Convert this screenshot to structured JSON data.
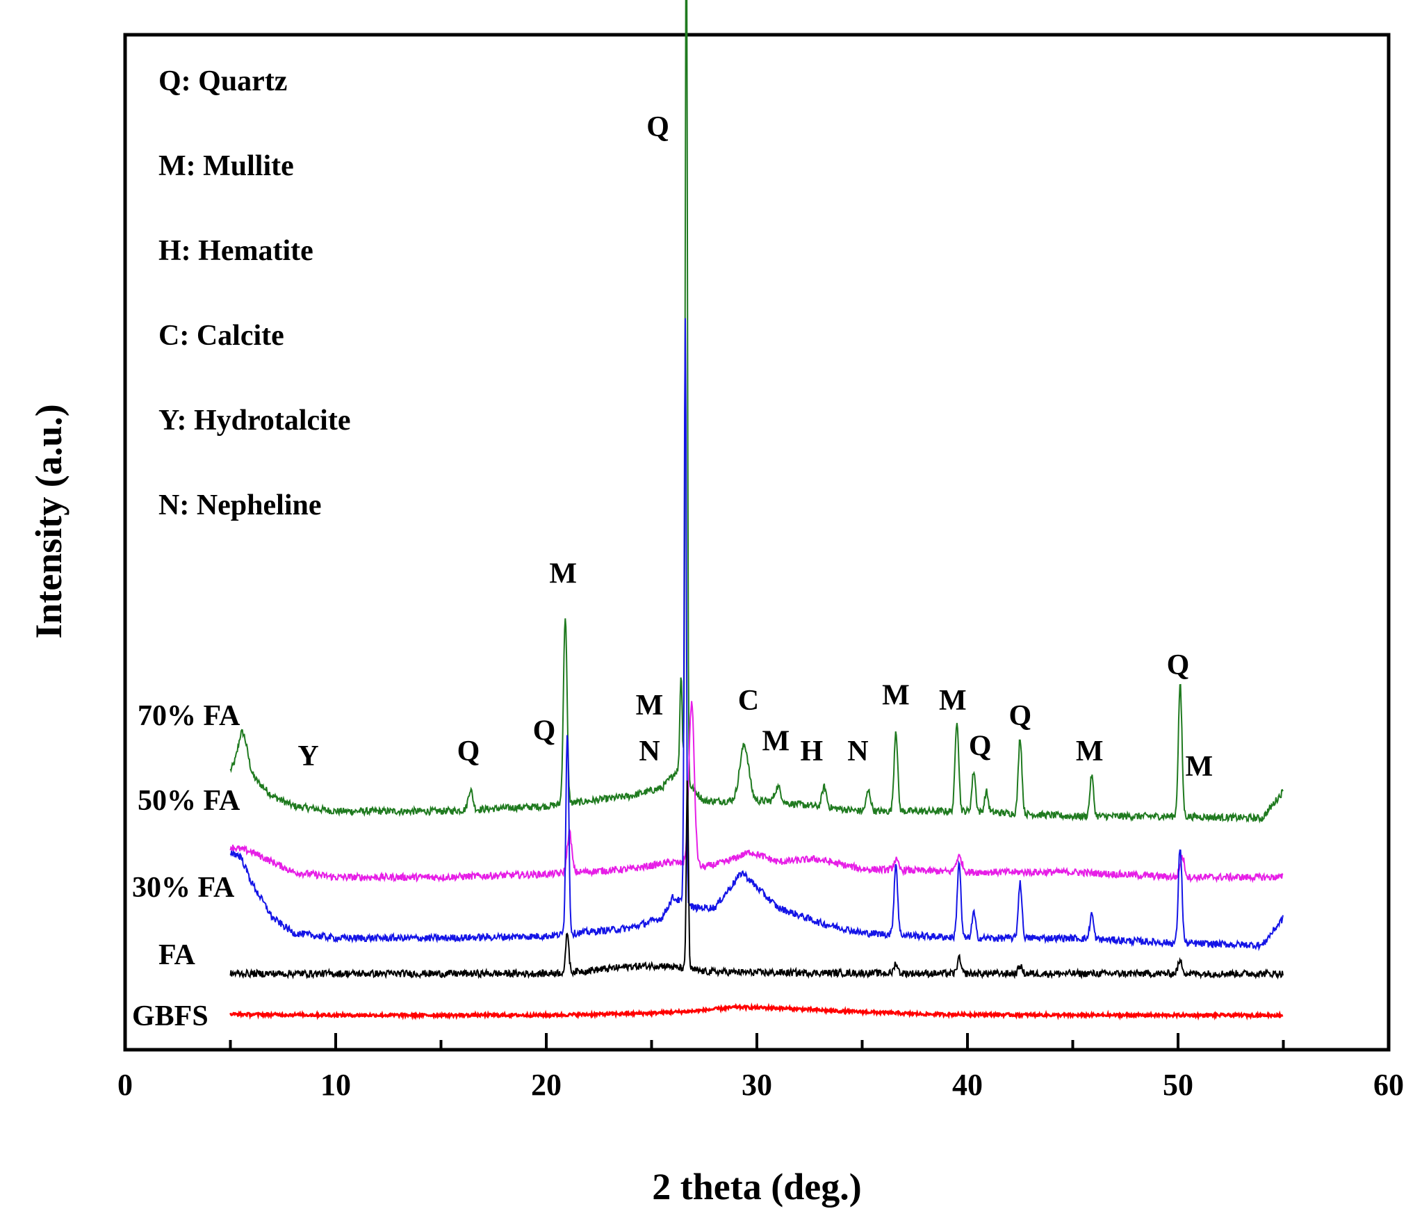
{
  "chart_data": {
    "type": "line",
    "title": "",
    "xlabel": "2 theta (deg.)",
    "ylabel": "Intensity (a.u.)",
    "xlim": [
      0,
      60
    ],
    "ylim": [
      0,
      100
    ],
    "x_ticks": [
      0,
      10,
      20,
      30,
      40,
      50,
      60
    ],
    "x_tick_labels": [
      "0",
      "10",
      "20",
      "30",
      "40",
      "50",
      "60"
    ],
    "y_ticks_visible": false,
    "grid": false,
    "legend_position": "top-left",
    "legend": [
      "Q: Quartz",
      "M: Mullite",
      "H: Hematite",
      "C: Calcite",
      "Y: Hydrotalcite",
      "N: Nepheline"
    ],
    "series": [
      {
        "name": "70% FA",
        "color": "#1f7a1f",
        "baseline": [
          [
            5,
            27.5
          ],
          [
            5.5,
            28.5
          ],
          [
            6,
            27.0
          ],
          [
            7,
            25.0
          ],
          [
            8,
            24.0
          ],
          [
            10,
            23.5
          ],
          [
            15,
            23.5
          ],
          [
            20,
            24.0
          ],
          [
            22,
            24.5
          ],
          [
            24,
            25.0
          ],
          [
            25.5,
            25.8
          ],
          [
            26.2,
            27.5
          ],
          [
            27.5,
            24.5
          ],
          [
            28.5,
            24.5
          ],
          [
            30.5,
            24.5
          ],
          [
            35,
            23.5
          ],
          [
            40,
            23.5
          ],
          [
            45,
            23.0
          ],
          [
            50,
            23.0
          ],
          [
            54,
            22.8
          ],
          [
            55,
            25.5
          ]
        ],
        "peaks": [
          [
            5.6,
            3.0,
            0.3
          ],
          [
            16.4,
            2.0,
            0.15
          ],
          [
            20.9,
            18.5,
            0.12
          ],
          [
            26.4,
            10.0,
            0.08
          ],
          [
            26.65,
            90.0,
            0.07
          ],
          [
            29.4,
            5.5,
            0.3
          ],
          [
            31.0,
            1.5,
            0.2
          ],
          [
            33.2,
            2.0,
            0.15
          ],
          [
            35.3,
            2.0,
            0.15
          ],
          [
            36.6,
            8.0,
            0.12
          ],
          [
            39.5,
            9.0,
            0.12
          ],
          [
            40.3,
            4.0,
            0.12
          ],
          [
            40.9,
            2.0,
            0.12
          ],
          [
            42.5,
            7.5,
            0.12
          ],
          [
            45.9,
            4.0,
            0.12
          ],
          [
            50.1,
            13.0,
            0.12
          ]
        ]
      },
      {
        "name": "50% FA",
        "color": "#e61ee6",
        "baseline": [
          [
            5,
            20.0
          ],
          [
            6,
            19.5
          ],
          [
            8,
            17.5
          ],
          [
            10,
            17.0
          ],
          [
            15,
            17.0
          ],
          [
            20,
            17.3
          ],
          [
            24,
            17.8
          ],
          [
            26,
            18.5
          ],
          [
            27.5,
            18.0
          ],
          [
            28.5,
            18.5
          ],
          [
            29.7,
            19.5
          ],
          [
            31,
            18.5
          ],
          [
            32.8,
            18.8
          ],
          [
            35,
            17.8
          ],
          [
            40,
            17.5
          ],
          [
            45,
            17.5
          ],
          [
            50,
            17.0
          ],
          [
            55,
            17.0
          ]
        ],
        "peaks": [
          [
            21.1,
            4.0,
            0.15
          ],
          [
            26.9,
            16.0,
            0.18
          ],
          [
            36.6,
            1.0,
            0.15
          ],
          [
            39.6,
            1.5,
            0.2
          ],
          [
            50.2,
            2.0,
            0.15
          ]
        ]
      },
      {
        "name": "30% FA",
        "color": "#1414e6",
        "baseline": [
          [
            5,
            19.5
          ],
          [
            5.5,
            19.0
          ],
          [
            6,
            16.5
          ],
          [
            7,
            13.0
          ],
          [
            8,
            11.5
          ],
          [
            10,
            11.0
          ],
          [
            15,
            11.0
          ],
          [
            20,
            11.2
          ],
          [
            24,
            12.0
          ],
          [
            25.5,
            13.0
          ],
          [
            26,
            15.0
          ],
          [
            27,
            14.0
          ],
          [
            28,
            14.0
          ],
          [
            29.3,
            17.5
          ],
          [
            30,
            16.0
          ],
          [
            31,
            14.0
          ],
          [
            33,
            12.5
          ],
          [
            35,
            11.5
          ],
          [
            40,
            11.0
          ],
          [
            45,
            11.0
          ],
          [
            50,
            10.5
          ],
          [
            54,
            10.3
          ],
          [
            55,
            13.0
          ]
        ],
        "peaks": [
          [
            21.0,
            20.0,
            0.1
          ],
          [
            26.6,
            58.0,
            0.07
          ],
          [
            36.6,
            7.0,
            0.12
          ],
          [
            39.6,
            7.5,
            0.12
          ],
          [
            40.3,
            2.5,
            0.12
          ],
          [
            42.5,
            5.5,
            0.12
          ],
          [
            45.9,
            2.5,
            0.12
          ],
          [
            50.1,
            9.5,
            0.12
          ]
        ]
      },
      {
        "name": "FA",
        "color": "#000000",
        "baseline": [
          [
            5,
            7.5
          ],
          [
            10,
            7.5
          ],
          [
            20,
            7.5
          ],
          [
            22,
            7.8
          ],
          [
            24,
            8.2
          ],
          [
            25.5,
            8.3
          ],
          [
            27.5,
            7.7
          ],
          [
            30,
            7.6
          ],
          [
            40,
            7.5
          ],
          [
            50,
            7.5
          ],
          [
            55,
            7.5
          ]
        ],
        "peaks": [
          [
            21.0,
            4.0,
            0.1
          ],
          [
            26.7,
            19.0,
            0.07
          ],
          [
            36.6,
            1.0,
            0.12
          ],
          [
            39.6,
            1.5,
            0.12
          ],
          [
            42.5,
            0.8,
            0.12
          ],
          [
            50.1,
            1.2,
            0.15
          ]
        ]
      },
      {
        "name": "GBFS",
        "color": "#ff0000",
        "baseline": [
          [
            5,
            3.5
          ],
          [
            10,
            3.4
          ],
          [
            20,
            3.4
          ],
          [
            25,
            3.6
          ],
          [
            27,
            3.8
          ],
          [
            29,
            4.2
          ],
          [
            31,
            4.1
          ],
          [
            34,
            3.8
          ],
          [
            38,
            3.5
          ],
          [
            45,
            3.4
          ],
          [
            55,
            3.4
          ]
        ],
        "peaks": []
      }
    ],
    "series_labels": [
      "70% FA",
      "50% FA",
      "30% FA",
      "FA",
      "GBFS"
    ],
    "annotations": [
      {
        "text": "Q",
        "x": 25.3,
        "y": 90.0
      },
      {
        "text": "M",
        "x": 20.8,
        "y": 46.0
      },
      {
        "text": "Q",
        "x": 19.9,
        "y": 30.5
      },
      {
        "text": "M",
        "x": 24.9,
        "y": 33.0
      },
      {
        "text": "N",
        "x": 24.9,
        "y": 28.5
      },
      {
        "text": "Y",
        "x": 8.7,
        "y": 28.0
      },
      {
        "text": "Q",
        "x": 16.3,
        "y": 28.5
      },
      {
        "text": "C",
        "x": 29.6,
        "y": 33.5
      },
      {
        "text": "M",
        "x": 30.9,
        "y": 29.5
      },
      {
        "text": "H",
        "x": 32.6,
        "y": 28.5
      },
      {
        "text": "N",
        "x": 34.8,
        "y": 28.5
      },
      {
        "text": "M",
        "x": 36.6,
        "y": 34.0
      },
      {
        "text": "M",
        "x": 39.3,
        "y": 33.5
      },
      {
        "text": "Q",
        "x": 40.6,
        "y": 29.0
      },
      {
        "text": "Q",
        "x": 42.5,
        "y": 32.0
      },
      {
        "text": "M",
        "x": 45.8,
        "y": 28.5
      },
      {
        "text": "Q",
        "x": 50.0,
        "y": 37.0
      },
      {
        "text": "M",
        "x": 51.0,
        "y": 27.0
      }
    ]
  }
}
